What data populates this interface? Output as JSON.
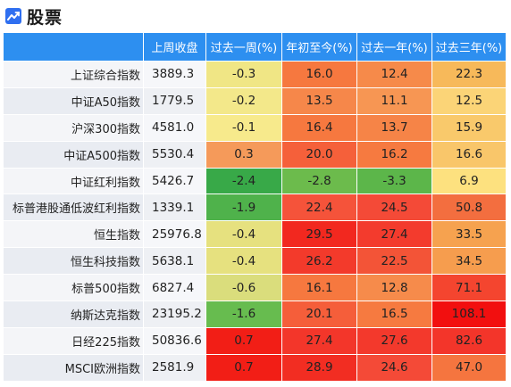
{
  "page": {
    "title": "股票",
    "icon": "line-chart-icon"
  },
  "table": {
    "headers": [
      "",
      "上周收盘",
      "过去一周(%)",
      "年初至今(%)",
      "过去一年(%)",
      "过去三年(%)"
    ],
    "rows": [
      {
        "name": "上证综合指数",
        "close": "3889.3",
        "week": "-0.3",
        "ytd": "16.0",
        "year": "12.4",
        "three_year": "22.3",
        "colors": {
          "week": "#f0e685",
          "ytd": "#f6783f",
          "year": "#f68a4a",
          "three_year": "#f7b95a"
        }
      },
      {
        "name": "中证A50指数",
        "close": "1779.5",
        "week": "-0.2",
        "ytd": "13.5",
        "year": "11.1",
        "three_year": "12.5",
        "colors": {
          "week": "#f3e88a",
          "ytd": "#f6874a",
          "year": "#f79653",
          "three_year": "#fbd477"
        }
      },
      {
        "name": "沪深300指数",
        "close": "4581.0",
        "week": "-0.1",
        "ytd": "16.4",
        "year": "13.7",
        "three_year": "15.9",
        "colors": {
          "week": "#f7ea8c",
          "ytd": "#f6783f",
          "year": "#f68447",
          "three_year": "#f9c96b"
        }
      },
      {
        "name": "中证A500指数",
        "close": "5530.4",
        "week": "0.3",
        "ytd": "20.0",
        "year": "16.2",
        "three_year": "16.6",
        "colors": {
          "week": "#f59a5a",
          "ytd": "#f5603a",
          "year": "#f67a40",
          "three_year": "#f9c66a"
        }
      },
      {
        "name": "中证红利指数",
        "close": "5426.7",
        "week": "-2.4",
        "ytd": "-2.8",
        "year": "-3.3",
        "three_year": "6.9",
        "colors": {
          "week": "#38a948",
          "ytd": "#6cbb4c",
          "year": "#5cb64a",
          "three_year": "#fde17f"
        }
      },
      {
        "name": "标普港股通低波红利指数",
        "close": "1339.1",
        "week": "-1.9",
        "ytd": "22.4",
        "year": "24.5",
        "three_year": "50.8",
        "colors": {
          "week": "#4fb24b",
          "ytd": "#f5533a",
          "year": "#f44a37",
          "three_year": "#f36e3f"
        }
      },
      {
        "name": "恒生指数",
        "close": "25976.8",
        "week": "-0.4",
        "ytd": "29.5",
        "year": "27.4",
        "three_year": "33.5",
        "colors": {
          "week": "#e6e17f",
          "ytd": "#f2281f",
          "year": "#f33b2d",
          "three_year": "#f6a24f"
        }
      },
      {
        "name": "恒生科技指数",
        "close": "5638.1",
        "week": "-0.4",
        "ytd": "26.2",
        "year": "22.5",
        "three_year": "34.5",
        "colors": {
          "week": "#e6e17f",
          "ytd": "#f33a2b",
          "year": "#f35437",
          "three_year": "#f69d4e"
        }
      },
      {
        "name": "标普500指数",
        "close": "6827.4",
        "week": "-0.6",
        "ytd": "16.1",
        "year": "12.8",
        "three_year": "71.1",
        "colors": {
          "week": "#dadd7c",
          "ytd": "#f6783f",
          "year": "#f68b4b",
          "three_year": "#f4452f"
        }
      },
      {
        "name": "纳斯达克指数",
        "close": "23195.2",
        "week": "-1.6",
        "ytd": "20.1",
        "year": "16.5",
        "three_year": "108.1",
        "colors": {
          "week": "#67bc4f",
          "ytd": "#f55e3a",
          "year": "#f67a40",
          "three_year": "#f20f0f"
        }
      },
      {
        "name": "日经225指数",
        "close": "50836.6",
        "week": "0.7",
        "ytd": "27.4",
        "year": "27.6",
        "three_year": "82.6",
        "colors": {
          "week": "#f21e16",
          "ytd": "#f3362a",
          "year": "#f3392c",
          "three_year": "#f3352a"
        }
      },
      {
        "name": "MSCI欧洲指数",
        "close": "2581.9",
        "week": "0.7",
        "ytd": "28.9",
        "year": "24.6",
        "three_year": "47.0",
        "colors": {
          "week": "#f21e16",
          "ytd": "#f22d22",
          "year": "#f44a37",
          "three_year": "#f5753f"
        }
      }
    ]
  }
}
